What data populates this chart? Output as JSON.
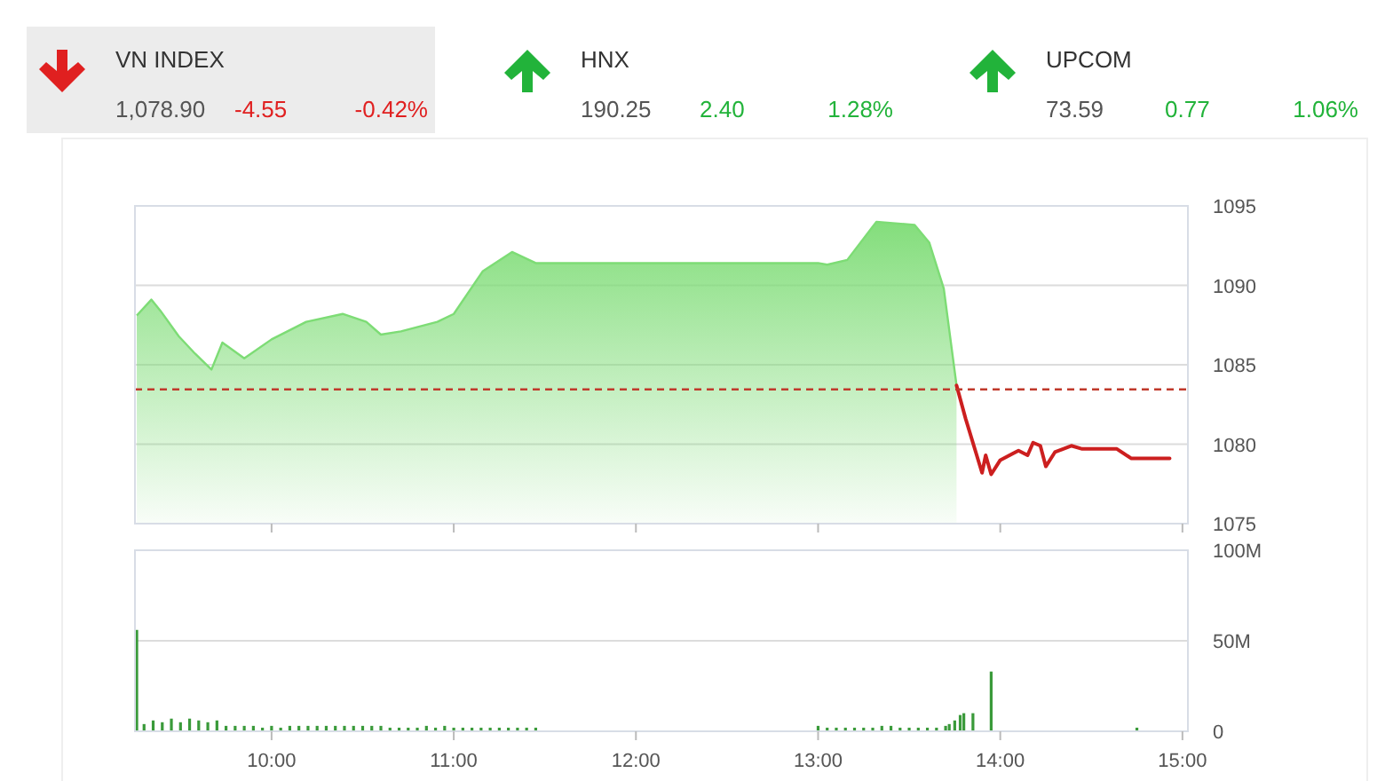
{
  "chart_data": [
    {
      "type": "other",
      "annotations": [
        "VN INDEX",
        "1,078.90",
        "-4.55",
        "-0.42%",
        "HNX",
        "190.25",
        "2.40",
        "1.28%",
        "UPCOM",
        "73.59",
        "0.77",
        "1.06%"
      ]
    },
    {
      "type": "area",
      "xlim": [
        9.25,
        15.03
      ],
      "ylim": [
        1075,
        1095
      ],
      "yticks": [
        1075,
        1080,
        1085,
        1090,
        1095
      ],
      "xticks": [
        {
          "value": 10,
          "label": null
        },
        {
          "value": 11,
          "label": null
        },
        {
          "value": 12,
          "label": null
        },
        {
          "value": 13,
          "label": null
        },
        {
          "value": 14,
          "label": null
        },
        {
          "value": 15,
          "label": null
        }
      ],
      "tick_labels": "y",
      "grid": "y",
      "ref_lines": [
        {
          "axis": "y",
          "value": 1083.45,
          "color": "#c0392b",
          "line_style": "dashed"
        }
      ],
      "series": [
        {
          "type": "area",
          "color": "#7ddc75",
          "x": [
            9.26,
            9.34,
            9.39,
            9.49,
            9.58,
            9.67,
            9.73,
            9.85,
            10.0,
            10.19,
            10.39,
            10.52,
            10.6,
            10.71,
            10.91,
            11.0,
            11.16,
            11.32,
            11.45,
            13.0,
            13.05,
            13.16,
            13.32,
            13.53,
            13.61,
            13.69,
            13.76
          ],
          "values": [
            1088.1,
            1089.1,
            1088.4,
            1086.8,
            1085.7,
            1084.7,
            1086.4,
            1085.4,
            1086.6,
            1087.7,
            1088.2,
            1087.7,
            1086.9,
            1087.1,
            1087.7,
            1088.2,
            1090.9,
            1092.1,
            1091.4,
            1091.4,
            1091.3,
            1091.6,
            1094.0,
            1093.8,
            1092.7,
            1089.8,
            1083.7
          ]
        },
        {
          "type": "line",
          "color": "#cc1f1f",
          "x": [
            13.76,
            13.81,
            13.9,
            13.92,
            13.95,
            14.0,
            14.1,
            14.15,
            14.18,
            14.22,
            14.25,
            14.3,
            14.39,
            14.45,
            14.64,
            14.72,
            14.93
          ],
          "values": [
            1083.7,
            1081.6,
            1078.2,
            1079.3,
            1078.1,
            1079.0,
            1079.6,
            1079.3,
            1080.1,
            1079.9,
            1078.6,
            1079.5,
            1079.9,
            1079.7,
            1079.7,
            1079.1,
            1079.1
          ]
        }
      ]
    },
    {
      "type": "bar",
      "xlim": [
        9.25,
        15.03
      ],
      "ylim": [
        0,
        100
      ],
      "yticks": [
        {
          "value": 0,
          "label": "0"
        },
        {
          "value": 50,
          "label": "50M"
        },
        {
          "value": 100,
          "label": "100M"
        }
      ],
      "xticks": [
        {
          "value": 10,
          "label": "10:00"
        },
        {
          "value": 11,
          "label": "11:00"
        },
        {
          "value": 12,
          "label": "12:00"
        },
        {
          "value": 13,
          "label": "13:00"
        },
        {
          "value": 14,
          "label": "14:00"
        },
        {
          "value": 15,
          "label": "15:00"
        }
      ],
      "grid": "y",
      "color": "#3a9a3a",
      "x": [
        9.26,
        9.3,
        9.35,
        9.4,
        9.45,
        9.5,
        9.55,
        9.6,
        9.65,
        9.7,
        9.75,
        9.8,
        9.85,
        9.9,
        9.95,
        10.0,
        10.05,
        10.1,
        10.15,
        10.2,
        10.25,
        10.3,
        10.35,
        10.4,
        10.45,
        10.5,
        10.55,
        10.6,
        10.65,
        10.7,
        10.75,
        10.8,
        10.85,
        10.9,
        10.95,
        11.0,
        11.05,
        11.1,
        11.15,
        11.2,
        11.25,
        11.3,
        11.35,
        11.4,
        11.45,
        13.0,
        13.05,
        13.1,
        13.15,
        13.2,
        13.25,
        13.3,
        13.35,
        13.4,
        13.45,
        13.5,
        13.55,
        13.6,
        13.65,
        13.7,
        13.72,
        13.75,
        13.78,
        13.8,
        13.85,
        13.95,
        14.75
      ],
      "values": [
        56,
        4,
        6,
        5,
        7,
        5,
        7,
        6,
        5,
        6,
        3,
        3,
        3,
        3,
        2,
        3,
        2,
        3,
        3,
        3,
        3,
        3,
        3,
        3,
        3,
        3,
        3,
        3,
        2,
        2,
        2,
        2,
        3,
        2,
        3,
        2,
        2,
        2,
        2,
        2,
        2,
        2,
        2,
        2,
        2,
        3,
        2,
        2,
        2,
        2,
        2,
        2,
        3,
        3,
        2,
        2,
        2,
        2,
        2,
        3,
        4,
        6,
        9,
        10,
        10,
        33,
        2
      ]
    }
  ]
}
